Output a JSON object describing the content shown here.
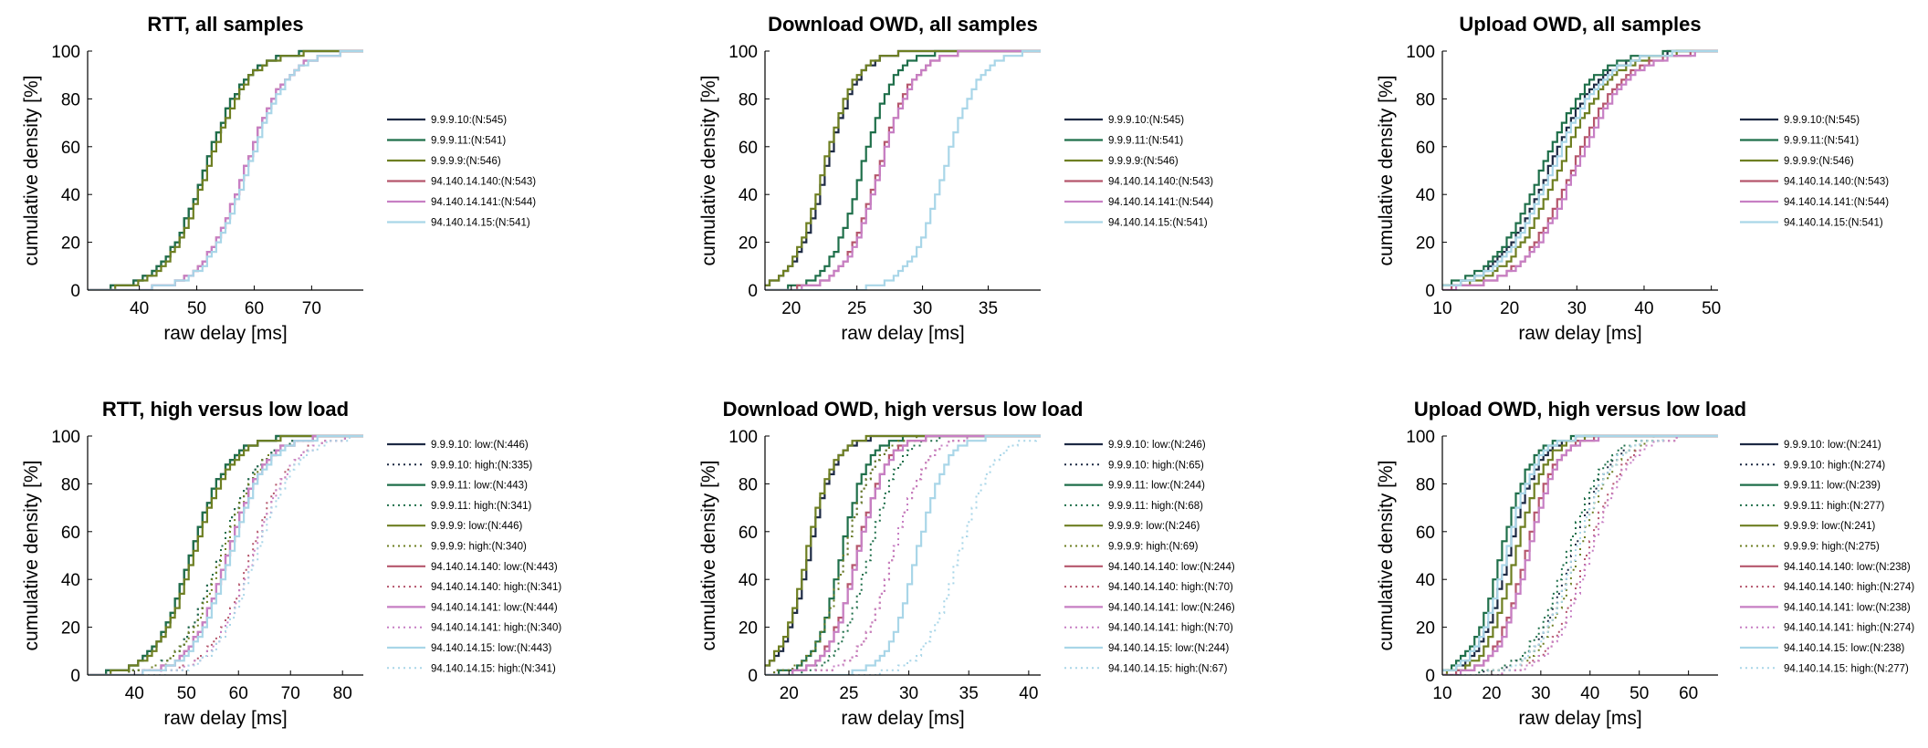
{
  "colors": {
    "9.9.9.10": "#1d2a44",
    "9.9.9.11": "#1f6f4a",
    "9.9.9.9": "#6e7f22",
    "94.140.14.140": "#b5566c",
    "94.140.14.141": "#c77fc4",
    "94.140.14.15": "#a9d6e8"
  },
  "chart_data": [
    {
      "type": "line",
      "title": "RTT, all samples",
      "xlabel": "raw delay [ms]",
      "ylabel": "cumulative density [%]",
      "xlim": [
        31,
        79
      ],
      "ylim": [
        0,
        100
      ],
      "xticks": [
        40,
        50,
        60,
        70
      ],
      "yticks": [
        0,
        20,
        40,
        60,
        80,
        100
      ],
      "grid": false,
      "legend": "right",
      "series": [
        {
          "name": "9.9.9.10:(N:545)",
          "host": "9.9.9.10",
          "style": "solid",
          "median": 51,
          "spread": 6.5
        },
        {
          "name": "9.9.9.11:(N:541)",
          "host": "9.9.9.11",
          "style": "solid",
          "median": 51,
          "spread": 6.5
        },
        {
          "name": "9.9.9.9:(N:546)",
          "host": "9.9.9.9",
          "style": "solid",
          "median": 51.5,
          "spread": 6.5
        },
        {
          "name": "94.140.14.140:(N:543)",
          "host": "94.140.14.140",
          "style": "solid",
          "median": 58,
          "spread": 6.5
        },
        {
          "name": "94.140.14.141:(N:544)",
          "host": "94.140.14.141",
          "style": "solid",
          "median": 58,
          "spread": 6.5
        },
        {
          "name": "94.140.14.15:(N:541)",
          "host": "94.140.14.15",
          "style": "solid",
          "median": 58.5,
          "spread": 6.5
        }
      ]
    },
    {
      "type": "line",
      "title": "Download OWD, all samples",
      "xlabel": "raw delay [ms]",
      "ylabel": "cumulative density [%]",
      "xlim": [
        18,
        39
      ],
      "ylim": [
        0,
        100
      ],
      "xticks": [
        20,
        25,
        30,
        35
      ],
      "yticks": [
        0,
        20,
        40,
        60,
        80,
        100
      ],
      "grid": false,
      "legend": "right",
      "series": [
        {
          "name": "9.9.9.10:(N:545)",
          "host": "9.9.9.10",
          "style": "solid",
          "median": 22.5,
          "spread": 2.2
        },
        {
          "name": "9.9.9.11:(N:541)",
          "host": "9.9.9.11",
          "style": "solid",
          "median": 25.2,
          "spread": 2.2
        },
        {
          "name": "9.9.9.9:(N:546)",
          "host": "9.9.9.9",
          "style": "solid",
          "median": 22.3,
          "spread": 2.2
        },
        {
          "name": "94.140.14.140:(N:543)",
          "host": "94.140.14.140",
          "style": "solid",
          "median": 26.5,
          "spread": 2.4
        },
        {
          "name": "94.140.14.141:(N:544)",
          "host": "94.140.14.141",
          "style": "solid",
          "median": 26.6,
          "spread": 2.4
        },
        {
          "name": "94.140.14.15:(N:541)",
          "host": "94.140.14.15",
          "style": "solid",
          "median": 31.5,
          "spread": 2.4
        }
      ]
    },
    {
      "type": "line",
      "title": "Upload OWD, all samples",
      "xlabel": "raw delay [ms]",
      "ylabel": "cumulative density [%]",
      "xlim": [
        10,
        51
      ],
      "ylim": [
        0,
        100
      ],
      "xticks": [
        10,
        20,
        30,
        40,
        50
      ],
      "yticks": [
        0,
        20,
        40,
        60,
        80,
        100
      ],
      "grid": false,
      "legend": "right",
      "series": [
        {
          "name": "9.9.9.10:(N:545)",
          "host": "9.9.9.10",
          "style": "solid",
          "median": 25.5,
          "spread": 7
        },
        {
          "name": "9.9.9.11:(N:541)",
          "host": "9.9.9.11",
          "style": "solid",
          "median": 24.5,
          "spread": 7
        },
        {
          "name": "9.9.9.9:(N:546)",
          "host": "9.9.9.9",
          "style": "solid",
          "median": 27,
          "spread": 7
        },
        {
          "name": "94.140.14.140:(N:543)",
          "host": "94.140.14.140",
          "style": "solid",
          "median": 29,
          "spread": 7
        },
        {
          "name": "94.140.14.141:(N:544)",
          "host": "94.140.14.141",
          "style": "solid",
          "median": 29.5,
          "spread": 7
        },
        {
          "name": "94.140.14.15:(N:541)",
          "host": "94.140.14.15",
          "style": "solid",
          "median": 26,
          "spread": 7
        }
      ]
    },
    {
      "type": "line",
      "title": "RTT, high versus low load",
      "xlabel": "raw delay [ms]",
      "ylabel": "cumulative density [%]",
      "xlim": [
        31,
        84
      ],
      "ylim": [
        0,
        100
      ],
      "xticks": [
        40,
        50,
        60,
        70,
        80
      ],
      "yticks": [
        0,
        20,
        40,
        60,
        80,
        100
      ],
      "grid": false,
      "legend": "right",
      "series": [
        {
          "name": "9.9.9.10: low:(N:446)",
          "host": "9.9.9.10",
          "style": "solid",
          "median": 50.5,
          "spread": 6.5
        },
        {
          "name": "9.9.9.10: high:(N:335)",
          "host": "9.9.9.10",
          "style": "dotted",
          "median": 56,
          "spread": 7
        },
        {
          "name": "9.9.9.11: low:(N:443)",
          "host": "9.9.9.11",
          "style": "solid",
          "median": 50.5,
          "spread": 6.5
        },
        {
          "name": "9.9.9.11: high:(N:341)",
          "host": "9.9.9.11",
          "style": "dotted",
          "median": 56,
          "spread": 7
        },
        {
          "name": "9.9.9.9: low:(N:446)",
          "host": "9.9.9.9",
          "style": "solid",
          "median": 51,
          "spread": 6.5
        },
        {
          "name": "9.9.9.9: high:(N:340)",
          "host": "9.9.9.9",
          "style": "dotted",
          "median": 56.5,
          "spread": 7
        },
        {
          "name": "94.140.14.140: low:(N:443)",
          "host": "94.140.14.140",
          "style": "solid",
          "median": 57.5,
          "spread": 6.5
        },
        {
          "name": "94.140.14.140: high:(N:341)",
          "host": "94.140.14.140",
          "style": "dotted",
          "median": 62,
          "spread": 7
        },
        {
          "name": "94.140.14.141: low:(N:444)",
          "host": "94.140.14.141",
          "style": "solid",
          "median": 57.5,
          "spread": 6.5
        },
        {
          "name": "94.140.14.141: high:(N:340)",
          "host": "94.140.14.141",
          "style": "dotted",
          "median": 62.5,
          "spread": 7
        },
        {
          "name": "94.140.14.15: low:(N:443)",
          "host": "94.140.14.15",
          "style": "solid",
          "median": 58,
          "spread": 6.5
        },
        {
          "name": "94.140.14.15: high:(N:341)",
          "host": "94.140.14.15",
          "style": "dotted",
          "median": 63,
          "spread": 7
        }
      ]
    },
    {
      "type": "line",
      "title": "Download OWD, high versus low load",
      "xlabel": "raw delay [ms]",
      "ylabel": "cumulative density [%]",
      "xlim": [
        18,
        41
      ],
      "ylim": [
        0,
        100
      ],
      "xticks": [
        20,
        25,
        30,
        35,
        40
      ],
      "yticks": [
        0,
        20,
        40,
        60,
        80,
        100
      ],
      "grid": false,
      "legend": "right",
      "series": [
        {
          "name": "9.9.9.10: low:(N:246)",
          "host": "9.9.9.10",
          "style": "solid",
          "median": 21.5,
          "spread": 2
        },
        {
          "name": "9.9.9.10: high:(N:65)",
          "host": "9.9.9.10",
          "style": "dotted",
          "median": 24.5,
          "spread": 2.3
        },
        {
          "name": "9.9.9.11: low:(N:244)",
          "host": "9.9.9.11",
          "style": "solid",
          "median": 24.2,
          "spread": 2
        },
        {
          "name": "9.9.9.11: high:(N:68)",
          "host": "9.9.9.11",
          "style": "dotted",
          "median": 26.5,
          "spread": 2.3
        },
        {
          "name": "9.9.9.9: low:(N:246)",
          "host": "9.9.9.9",
          "style": "solid",
          "median": 21.3,
          "spread": 2
        },
        {
          "name": "9.9.9.9: high:(N:69)",
          "host": "9.9.9.9",
          "style": "dotted",
          "median": 24.5,
          "spread": 2.3
        },
        {
          "name": "94.140.14.140: low:(N:244)",
          "host": "94.140.14.140",
          "style": "solid",
          "median": 25.5,
          "spread": 2.2
        },
        {
          "name": "94.140.14.140: high:(N:70)",
          "host": "94.140.14.140",
          "style": "dotted",
          "median": 28.5,
          "spread": 2.5
        },
        {
          "name": "94.140.14.141: low:(N:246)",
          "host": "94.140.14.141",
          "style": "solid",
          "median": 25.6,
          "spread": 2.2
        },
        {
          "name": "94.140.14.141: high:(N:70)",
          "host": "94.140.14.141",
          "style": "dotted",
          "median": 28.5,
          "spread": 2.5
        },
        {
          "name": "94.140.14.15: low:(N:244)",
          "host": "94.140.14.15",
          "style": "solid",
          "median": 30.5,
          "spread": 2.2
        },
        {
          "name": "94.140.14.15: high:(N:67)",
          "host": "94.140.14.15",
          "style": "dotted",
          "median": 34,
          "spread": 2.6
        }
      ]
    },
    {
      "type": "line",
      "title": "Upload OWD, high versus low load",
      "xlabel": "raw delay [ms]",
      "ylabel": "cumulative density [%]",
      "xlim": [
        10,
        66
      ],
      "ylim": [
        0,
        100
      ],
      "xticks": [
        10,
        20,
        30,
        40,
        50,
        60
      ],
      "yticks": [
        0,
        20,
        40,
        60,
        80,
        100
      ],
      "grid": false,
      "legend": "right",
      "series": [
        {
          "name": "9.9.9.10: low:(N:241)",
          "host": "9.9.9.10",
          "style": "solid",
          "median": 23,
          "spread": 5.5
        },
        {
          "name": "9.9.9.10: high:(N:274)",
          "host": "9.9.9.10",
          "style": "dotted",
          "median": 36,
          "spread": 7
        },
        {
          "name": "9.9.9.11: low:(N:239)",
          "host": "9.9.9.11",
          "style": "solid",
          "median": 21.5,
          "spread": 5.5
        },
        {
          "name": "9.9.9.11: high:(N:277)",
          "host": "9.9.9.11",
          "style": "dotted",
          "median": 35,
          "spread": 7
        },
        {
          "name": "9.9.9.9: low:(N:241)",
          "host": "9.9.9.9",
          "style": "solid",
          "median": 24.5,
          "spread": 5.5
        },
        {
          "name": "9.9.9.9: high:(N:275)",
          "host": "9.9.9.9",
          "style": "dotted",
          "median": 37,
          "spread": 7
        },
        {
          "name": "94.140.14.140: low:(N:238)",
          "host": "94.140.14.140",
          "style": "solid",
          "median": 26.5,
          "spread": 5.5
        },
        {
          "name": "94.140.14.140: high:(N:274)",
          "host": "94.140.14.140",
          "style": "dotted",
          "median": 39,
          "spread": 7
        },
        {
          "name": "94.140.14.141: low:(N:238)",
          "host": "94.140.14.141",
          "style": "solid",
          "median": 27,
          "spread": 5.5
        },
        {
          "name": "94.140.14.141: high:(N:274)",
          "host": "94.140.14.141",
          "style": "dotted",
          "median": 39.5,
          "spread": 7
        },
        {
          "name": "94.140.14.15: low:(N:238)",
          "host": "94.140.14.15",
          "style": "solid",
          "median": 22.5,
          "spread": 5.5
        },
        {
          "name": "94.140.14.15: high:(N:277)",
          "host": "94.140.14.15",
          "style": "dotted",
          "median": 36.5,
          "spread": 7
        }
      ]
    }
  ]
}
